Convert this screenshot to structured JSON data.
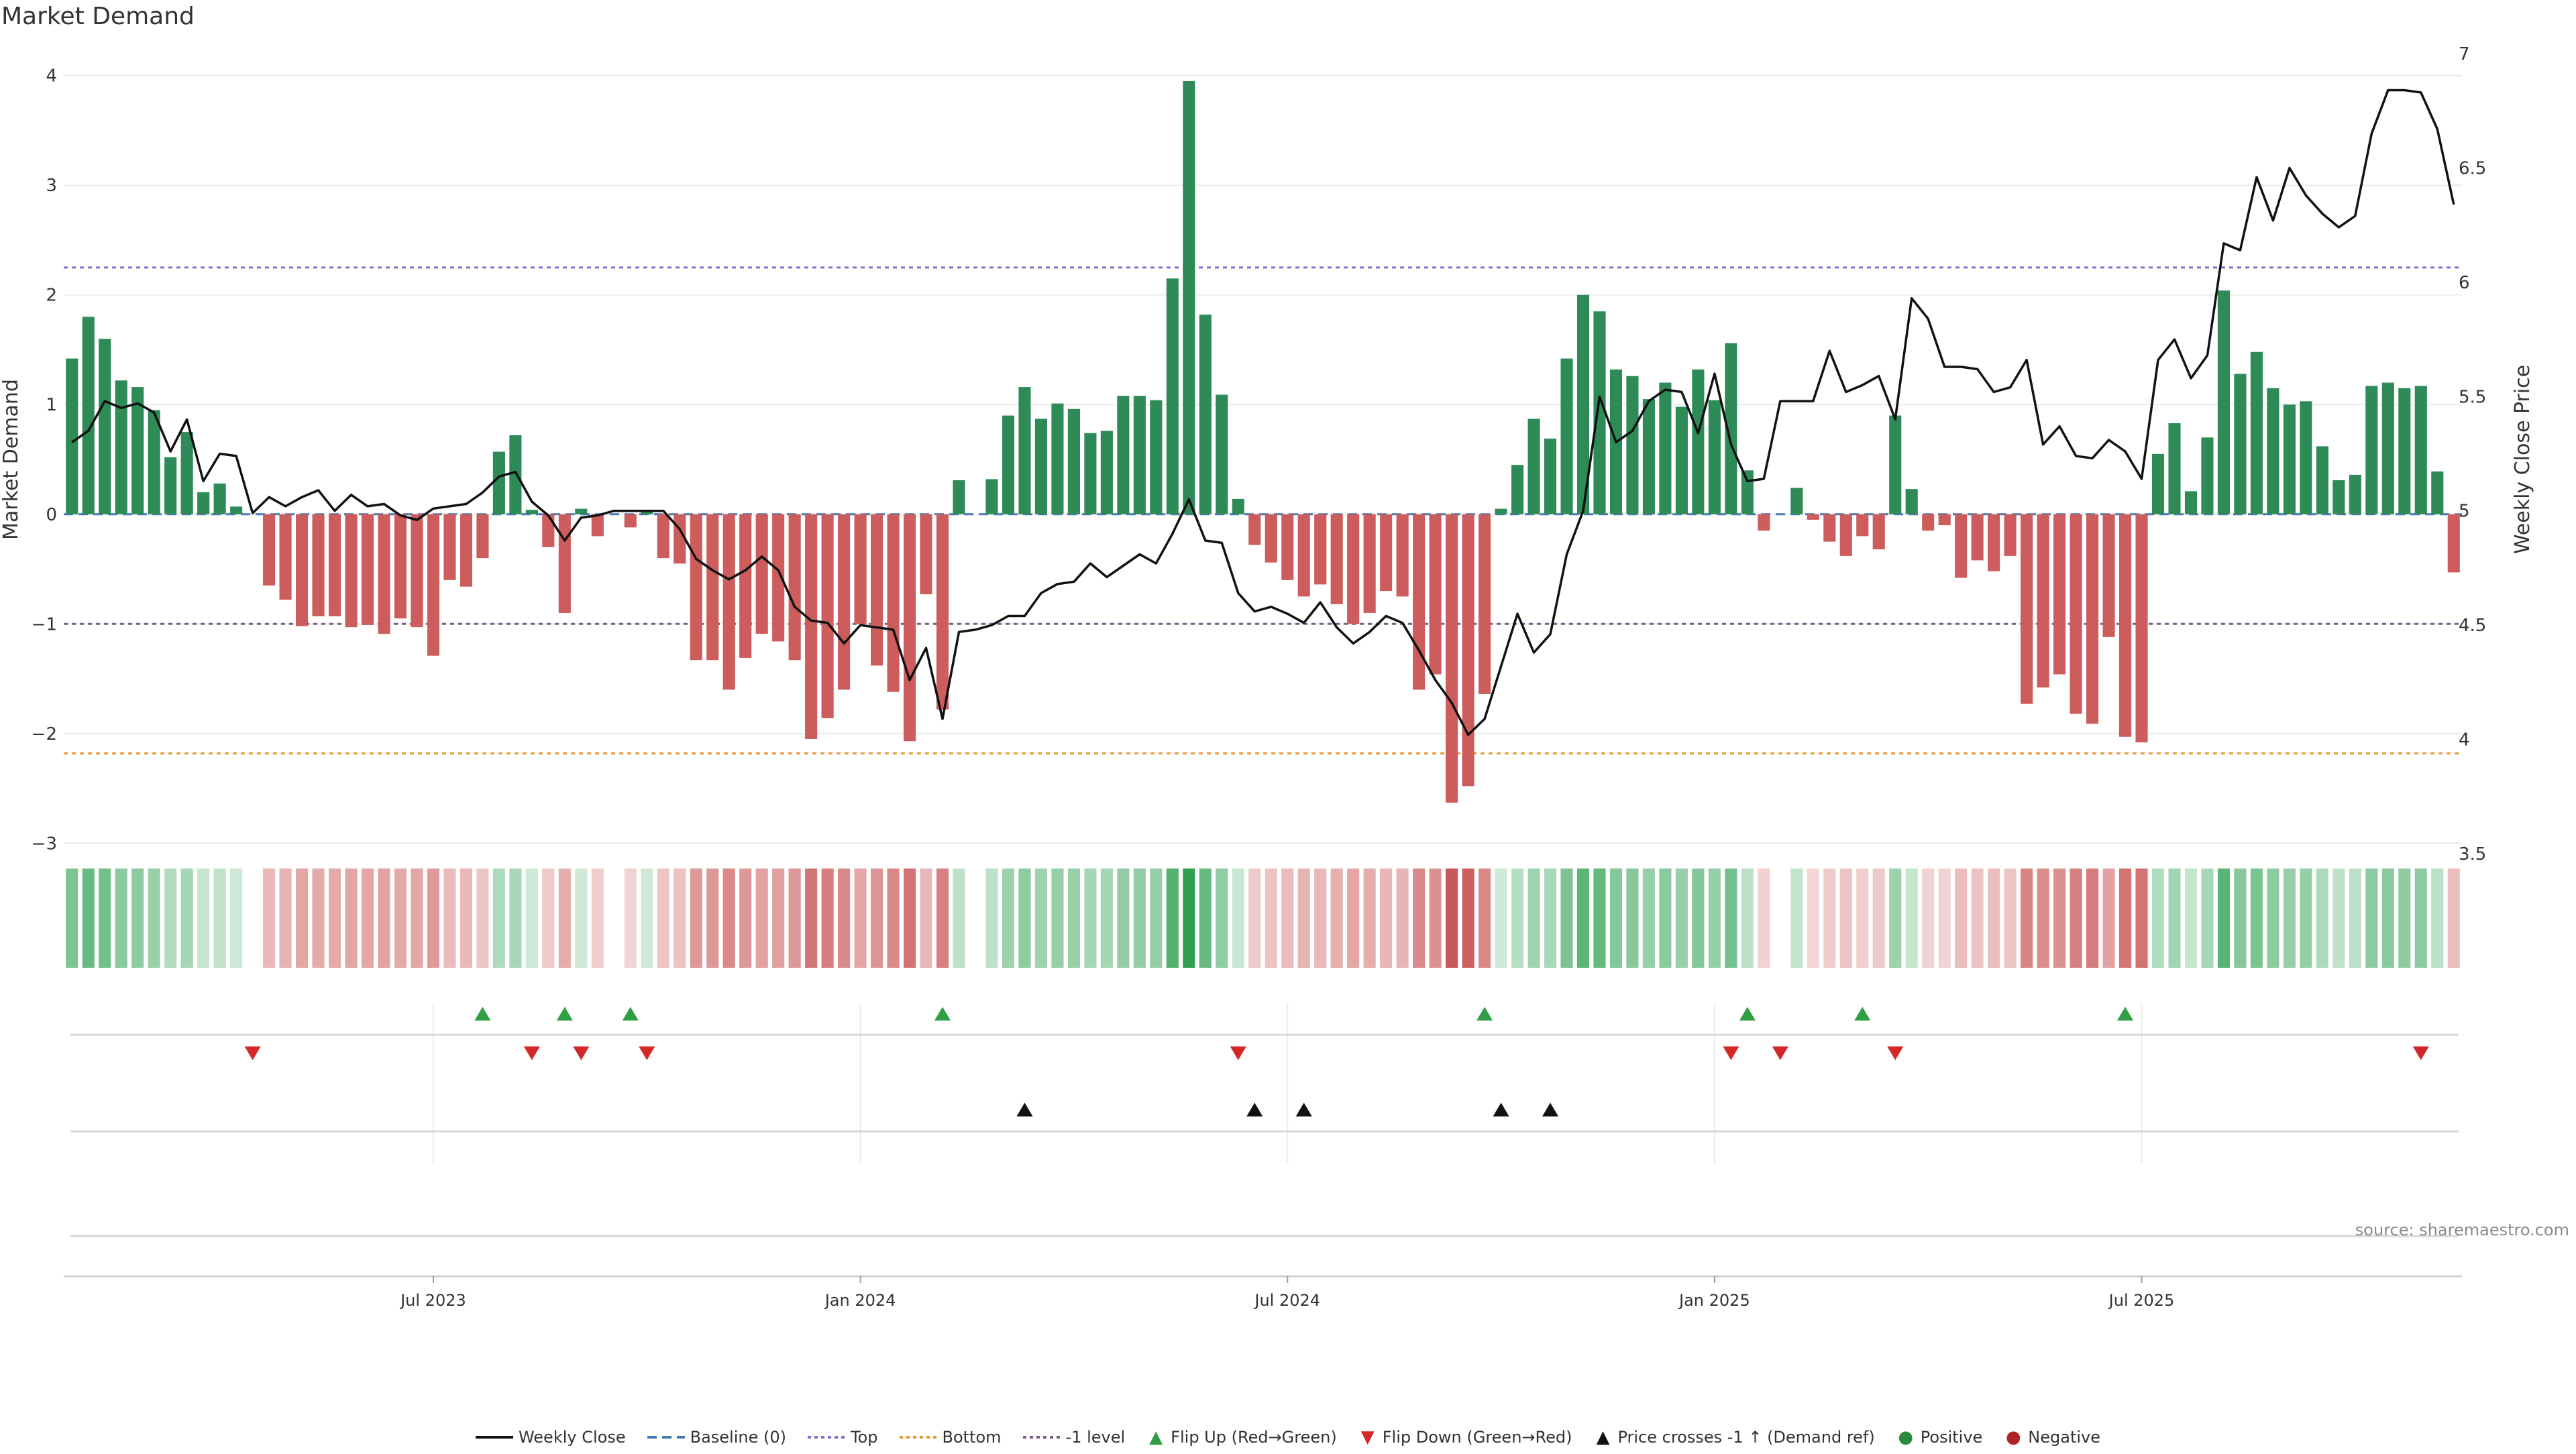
{
  "title": "Market Demand",
  "source": "source: sharemaestro.com",
  "chart_data": {
    "type": "bar",
    "left_axis_label": "Market Demand",
    "right_axis_label": "Weekly Close Price",
    "left_ylim": [
      -3.2,
      4.2
    ],
    "left_ticks": [
      -3,
      -2,
      -1,
      0,
      1,
      2,
      3,
      4
    ],
    "left_tick_labels": [
      "−3",
      "−2",
      "−1",
      "0",
      "1",
      "2",
      "3",
      "4"
    ],
    "right_ylim": [
      3.45,
      7.0
    ],
    "right_ticks": [
      3.5,
      4,
      4.5,
      5,
      5.5,
      6,
      6.5,
      7
    ],
    "right_tick_labels": [
      "3.5",
      "4",
      "4.5",
      "5",
      "5.5",
      "6",
      "6.5",
      "7"
    ],
    "x_ticks": [
      {
        "index": 22,
        "label": "Jul 2023"
      },
      {
        "index": 48,
        "label": "Jan 2024"
      },
      {
        "index": 74,
        "label": "Jul 2024"
      },
      {
        "index": 100,
        "label": "Jan 2025"
      },
      {
        "index": 126,
        "label": "Jul 2025"
      }
    ],
    "reference_lines": [
      {
        "name": "Top",
        "value": 2.25,
        "color": "#7b6fd6"
      },
      {
        "name": "Bottom",
        "value": -2.18,
        "color": "#e8962f"
      },
      {
        "name": "-1 level",
        "value": -1.0,
        "color": "#7a5c8a"
      }
    ],
    "demand": [
      1.42,
      1.8,
      1.6,
      1.22,
      1.16,
      0.95,
      0.52,
      0.75,
      0.2,
      0.28,
      0.07,
      0,
      -0.65,
      -0.78,
      -1.02,
      -0.93,
      -0.93,
      -1.03,
      -1.01,
      -1.09,
      -0.95,
      -1.03,
      -1.29,
      -0.6,
      -0.66,
      -0.4,
      0.57,
      0.72,
      0.04,
      -0.3,
      -0.9,
      0.05,
      -0.2,
      0,
      -0.12,
      0.04,
      -0.4,
      -0.45,
      -1.33,
      -1.33,
      -1.6,
      -1.31,
      -1.09,
      -1.16,
      -1.33,
      -2.05,
      -1.86,
      -1.6,
      -1.0,
      -1.38,
      -1.62,
      -2.07,
      -0.73,
      -1.78,
      0.31,
      0,
      0.32,
      0.9,
      1.16,
      0.87,
      1.01,
      0.96,
      0.74,
      0.76,
      1.08,
      1.08,
      1.04,
      2.15,
      3.95,
      1.82,
      1.09,
      0.14,
      -0.28,
      -0.44,
      -0.6,
      -0.75,
      -0.64,
      -0.82,
      -1.0,
      -0.9,
      -0.7,
      -0.75,
      -1.6,
      -1.46,
      -2.63,
      -2.48,
      -1.64,
      0.05,
      0.45,
      0.87,
      0.69,
      1.42,
      2.0,
      1.85,
      1.32,
      1.26,
      1.05,
      1.2,
      0.98,
      1.32,
      1.04,
      1.56,
      0.4,
      -0.15,
      0,
      0.24,
      -0.05,
      -0.25,
      -0.38,
      -0.2,
      -0.32,
      0.9,
      0.23,
      -0.15,
      -0.1,
      -0.58,
      -0.42,
      -0.52,
      -0.38,
      -1.73,
      -1.58,
      -1.46,
      -1.82,
      -1.91,
      -1.12,
      -2.03,
      -2.08,
      0.55,
      0.83,
      0.21,
      0.7,
      2.04,
      1.28,
      1.48,
      1.15,
      1.0,
      1.03,
      0.62,
      0.31,
      0.36,
      1.17,
      1.2,
      1.15,
      1.17,
      0.39,
      -0.53
    ],
    "weekly_close": [
      5.3,
      5.35,
      5.48,
      5.45,
      5.47,
      5.43,
      5.26,
      5.4,
      5.13,
      5.25,
      5.24,
      4.99,
      5.06,
      5.02,
      5.06,
      5.09,
      5.0,
      5.07,
      5.02,
      5.03,
      4.98,
      4.96,
      5.01,
      5.02,
      5.03,
      5.08,
      5.15,
      5.17,
      5.04,
      4.98,
      4.87,
      4.97,
      4.98,
      5.0,
      5.0,
      5.0,
      5.0,
      4.92,
      4.79,
      4.74,
      4.7,
      4.74,
      4.8,
      4.74,
      4.58,
      4.52,
      4.51,
      4.42,
      4.5,
      4.49,
      4.48,
      4.26,
      4.4,
      4.09,
      4.47,
      4.48,
      4.5,
      4.54,
      4.54,
      4.64,
      4.68,
      4.69,
      4.77,
      4.71,
      4.76,
      4.81,
      4.77,
      4.9,
      5.05,
      4.87,
      4.86,
      4.64,
      4.56,
      4.58,
      4.55,
      4.51,
      4.6,
      4.49,
      4.42,
      4.47,
      4.54,
      4.51,
      4.39,
      4.26,
      4.16,
      4.02,
      4.09,
      4.32,
      4.55,
      4.38,
      4.46,
      4.81,
      5.0,
      5.5,
      5.3,
      5.35,
      5.48,
      5.53,
      5.52,
      5.34,
      5.6,
      5.29,
      5.13,
      5.14,
      5.48,
      5.48,
      5.48,
      5.7,
      5.52,
      5.55,
      5.59,
      5.4,
      5.93,
      5.84,
      5.63,
      5.63,
      5.62,
      5.52,
      5.54,
      5.66,
      5.29,
      5.37,
      5.24,
      5.23,
      5.31,
      5.26,
      5.14,
      5.66,
      5.75,
      5.58,
      5.68,
      6.17,
      6.14,
      6.46,
      6.27,
      6.5,
      6.38,
      6.3,
      6.24,
      6.29,
      6.65,
      6.84,
      6.84,
      6.83,
      6.67,
      6.34
    ],
    "flip_up_indices": [
      25,
      30,
      34,
      53,
      86,
      102,
      109,
      125
    ],
    "flip_down_indices": [
      11,
      28,
      31,
      35,
      71,
      101,
      104,
      111,
      143
    ],
    "price_cross_indices": [
      58,
      72,
      75,
      87,
      90
    ],
    "legend": [
      {
        "label": "Weekly Close",
        "glyph": "line-solid",
        "color": "#111111"
      },
      {
        "label": "Baseline (0)",
        "glyph": "line-dashed",
        "color": "#4a78b5"
      },
      {
        "label": "Top",
        "glyph": "line-dotted",
        "color": "#7b6fd6"
      },
      {
        "label": "Bottom",
        "glyph": "line-dotted",
        "color": "#e8962f"
      },
      {
        "label": "-1 level",
        "glyph": "line-dotted",
        "color": "#7a5c8a"
      },
      {
        "label": "Flip Up (Red→Green)",
        "glyph": "triangle-up",
        "color": "#2ea043"
      },
      {
        "label": "Flip Down (Green→Red)",
        "glyph": "triangle-down",
        "color": "#d62728"
      },
      {
        "label": "Price crosses -1 ↑ (Demand ref)",
        "glyph": "triangle-up",
        "color": "#111111"
      },
      {
        "label": "Positive",
        "glyph": "circle",
        "color": "#2b8a3e"
      },
      {
        "label": "Negative",
        "glyph": "circle",
        "color": "#b22222"
      }
    ]
  },
  "colors": {
    "positive_bar": "#2e8b57",
    "negative_bar": "#cd5c5c",
    "grid": "#ececec",
    "axis_text": "#333333"
  }
}
